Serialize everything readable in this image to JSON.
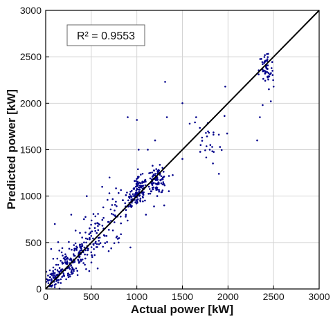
{
  "chart_data": {
    "type": "scatter",
    "xlabel": "Actual power [kW]",
    "ylabel": "Predicted power [kW]",
    "xlim": [
      0,
      3000
    ],
    "ylim": [
      0,
      3000
    ],
    "xticks": [
      "0",
      "500",
      "1000",
      "1500",
      "2000",
      "2500",
      "3000"
    ],
    "yticks": [
      "0",
      "500",
      "1000",
      "1500",
      "2000",
      "2500",
      "3000"
    ],
    "grid": true,
    "annotation": "R² = 0.9553",
    "reference_line": {
      "type": "y=x",
      "color": "#000000"
    },
    "marker_color": "#00008B",
    "clusters": [
      {
        "cx": 100,
        "cy": 110,
        "sx": 45,
        "sy": 60,
        "n": 70
      },
      {
        "cx": 220,
        "cy": 240,
        "sx": 60,
        "sy": 80,
        "n": 70
      },
      {
        "cx": 380,
        "cy": 400,
        "sx": 70,
        "sy": 90,
        "n": 80
      },
      {
        "cx": 560,
        "cy": 600,
        "sx": 80,
        "sy": 120,
        "n": 60
      },
      {
        "cx": 750,
        "cy": 780,
        "sx": 80,
        "sy": 130,
        "n": 35
      },
      {
        "cx": 950,
        "cy": 960,
        "sx": 50,
        "sy": 60,
        "n": 50
      },
      {
        "cx": 1030,
        "cy": 1060,
        "sx": 40,
        "sy": 70,
        "n": 80
      },
      {
        "cx": 1220,
        "cy": 1170,
        "sx": 55,
        "sy": 70,
        "n": 110
      },
      {
        "cx": 1780,
        "cy": 1620,
        "sx": 90,
        "sy": 120,
        "n": 25
      },
      {
        "cx": 2420,
        "cy": 2350,
        "sx": 40,
        "sy": 110,
        "n": 55
      }
    ],
    "outliers": [
      [
        1000,
        1820
      ],
      [
        1310,
        2230
      ],
      [
        1330,
        1850
      ],
      [
        1020,
        1500
      ],
      [
        1120,
        1500
      ],
      [
        700,
        1200
      ],
      [
        1650,
        1850
      ],
      [
        1580,
        1780
      ],
      [
        1970,
        2180
      ],
      [
        2320,
        1600
      ],
      [
        2350,
        1850
      ],
      [
        2380,
        1980
      ],
      [
        2470,
        2020
      ],
      [
        2500,
        2180
      ],
      [
        1900,
        1240
      ],
      [
        280,
        800
      ],
      [
        450,
        1000
      ],
      [
        620,
        1100
      ],
      [
        100,
        700
      ],
      [
        1500,
        2000
      ],
      [
        1800,
        1500
      ],
      [
        900,
        1850
      ],
      [
        1200,
        1600
      ],
      [
        800,
        500
      ],
      [
        1100,
        800
      ],
      [
        1300,
        900
      ],
      [
        1500,
        1400
      ],
      [
        1700,
        1550
      ],
      [
        60,
        430
      ],
      [
        350,
        150
      ]
    ]
  }
}
